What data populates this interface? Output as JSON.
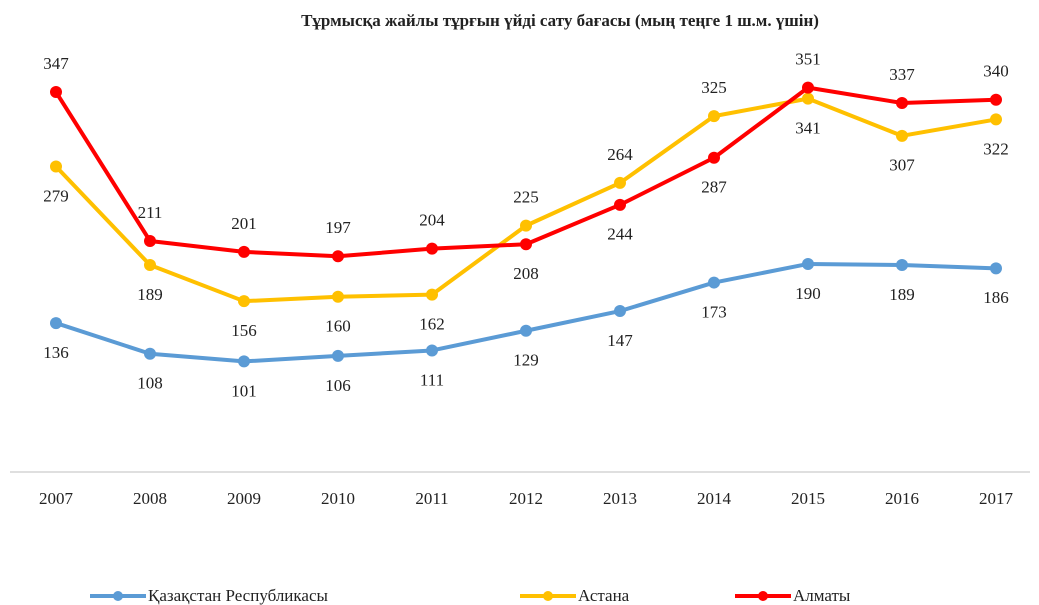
{
  "chart_data": {
    "type": "line",
    "title": "Тұрмысқа жайлы тұрғын үйді сату бағасы (мың теңге 1 ш.м. үшін)",
    "categories": [
      "2007",
      "2008",
      "2009",
      "2010",
      "2011",
      "2012",
      "2013",
      "2014",
      "2015",
      "2016",
      "2017"
    ],
    "series": [
      {
        "name": "Қазақстан Республикасы",
        "color": "#5b9bd5",
        "values": [
          136,
          108,
          101,
          106,
          111,
          129,
          147,
          173,
          190,
          189,
          186
        ]
      },
      {
        "name": "Астана",
        "color": "#ffc000",
        "values": [
          279,
          189,
          156,
          160,
          162,
          225,
          264,
          325,
          341,
          307,
          322
        ]
      },
      {
        "name": "Алматы",
        "color": "#ff0000",
        "values": [
          347,
          211,
          201,
          197,
          204,
          208,
          244,
          287,
          351,
          337,
          340
        ]
      }
    ],
    "ylim": [
      0,
      400
    ]
  }
}
